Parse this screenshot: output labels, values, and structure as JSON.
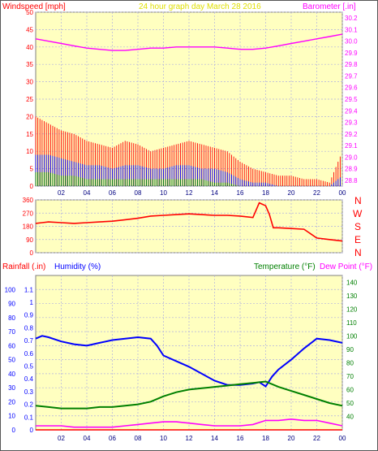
{
  "header": {
    "wind_label": "Windspeed [mph]",
    "title": "24 hour graph day   March 28 2016",
    "baro_label": "Barometer [.in]"
  },
  "bottom_header": {
    "rain_label": "Rainfall (.in)",
    "humidity_label": "Humidity (%)",
    "temp_label": "Temperature (°F)",
    "dew_label": "Dew Point (°F)"
  },
  "compass_labels": [
    "N",
    "W",
    "S",
    "E",
    "N"
  ],
  "x_ticks": [
    "02",
    "04",
    "06",
    "08",
    "10",
    "12",
    "14",
    "16",
    "18",
    "20",
    "22",
    "00"
  ],
  "colors": {
    "plot_bg": "#ffffc0",
    "wind": "#ff0000",
    "gust": "#ff0000",
    "avg_wind": "#0000ff",
    "low_wind": "#008000",
    "barometer": "#ff00ff",
    "direction": "#ff0000",
    "humidity": "#0000ff",
    "temperature": "#008000",
    "dewpoint": "#ff00ff",
    "rainfall": "#ff0000",
    "grid": "#b0b0e0",
    "tick_text": "#000080",
    "header_yellow": "#e0e000"
  },
  "chart_data": [
    {
      "type": "line",
      "title": "24 hour graph day   March 28 2016",
      "x_range": [
        0,
        24
      ],
      "grid": true,
      "axes": {
        "left": {
          "label": "Windspeed [mph]",
          "ylim": [
            0,
            50
          ],
          "ticks": [
            0,
            5,
            10,
            15,
            20,
            25,
            30,
            35,
            40,
            45,
            50
          ]
        },
        "right": {
          "label": "Barometer [.in]",
          "ylim": [
            28.75,
            30.25
          ],
          "ticks": [
            28.8,
            28.9,
            29.0,
            29.1,
            29.2,
            29.3,
            29.4,
            29.5,
            29.6,
            29.7,
            29.8,
            29.9,
            30.0,
            30.1,
            30.2
          ]
        }
      },
      "series": [
        {
          "name": "Barometer",
          "axis": "right",
          "x": [
            0,
            1,
            2,
            3,
            4,
            5,
            6,
            7,
            8,
            9,
            10,
            11,
            12,
            13,
            14,
            15,
            16,
            17,
            18,
            19,
            20,
            21,
            22,
            23,
            24
          ],
          "y": [
            30.02,
            30.0,
            29.98,
            29.96,
            29.94,
            29.93,
            29.92,
            29.92,
            29.93,
            29.94,
            29.94,
            29.95,
            29.95,
            29.95,
            29.95,
            29.94,
            29.93,
            29.93,
            29.94,
            29.96,
            29.98,
            30.0,
            30.02,
            30.04,
            30.06
          ]
        },
        {
          "name": "Wind gust",
          "axis": "left",
          "x": [
            0,
            1,
            2,
            3,
            4,
            5,
            6,
            7,
            8,
            9,
            10,
            11,
            12,
            13,
            14,
            15,
            16,
            17,
            18,
            19,
            20,
            21,
            22,
            23,
            24
          ],
          "y": [
            20,
            18,
            16,
            15,
            13,
            12,
            11,
            13,
            12,
            10,
            11,
            12,
            13,
            12,
            11,
            10,
            7,
            5,
            4,
            3,
            3,
            2,
            2,
            1,
            10
          ]
        },
        {
          "name": "Average wind",
          "axis": "left",
          "x": [
            0,
            1,
            2,
            3,
            4,
            5,
            6,
            7,
            8,
            9,
            10,
            11,
            12,
            13,
            14,
            15,
            16,
            17,
            18,
            19,
            20,
            21,
            22,
            23,
            24
          ],
          "y": [
            9,
            9,
            8,
            7,
            6,
            6,
            5,
            6,
            6,
            5,
            5,
            6,
            6,
            5,
            5,
            4,
            2,
            1,
            1,
            0,
            0,
            0,
            0,
            0,
            3
          ]
        },
        {
          "name": "Low wind",
          "axis": "left",
          "x": [
            0,
            1,
            2,
            3,
            4,
            5,
            6,
            7,
            8,
            9,
            10,
            11,
            12,
            13,
            14,
            15,
            16,
            17,
            18,
            19,
            20,
            21,
            22,
            23,
            24
          ],
          "y": [
            4,
            4,
            3,
            3,
            2,
            2,
            2,
            2,
            2,
            2,
            2,
            2,
            2,
            2,
            1,
            1,
            0,
            0,
            0,
            0,
            0,
            0,
            0,
            0,
            0
          ]
        }
      ]
    },
    {
      "type": "line",
      "x_range": [
        0,
        24
      ],
      "ylim": [
        0,
        360
      ],
      "ticks": [
        0,
        90,
        180,
        270,
        360
      ],
      "grid": true,
      "series": [
        {
          "name": "Wind direction",
          "x": [
            0,
            0.5,
            1,
            2,
            3,
            4,
            5,
            6,
            7,
            8,
            9,
            10,
            11,
            12,
            13,
            14,
            15,
            16,
            17,
            17.5,
            18,
            18.3,
            18.6,
            19,
            20,
            21,
            22,
            23,
            24
          ],
          "y": [
            200,
            205,
            210,
            205,
            200,
            205,
            210,
            215,
            225,
            235,
            250,
            255,
            260,
            265,
            260,
            255,
            255,
            250,
            240,
            340,
            320,
            260,
            170,
            170,
            165,
            160,
            100,
            90,
            80
          ]
        }
      ]
    },
    {
      "type": "line",
      "x_range": [
        0,
        24
      ],
      "grid": true,
      "axes": {
        "left_outer": {
          "label": "Rainfall (.in)",
          "ylim": [
            0,
            1.2
          ],
          "ticks": [
            0,
            0.1,
            0.2,
            0.3,
            0.4,
            0.5,
            0.6,
            0.7,
            0.8,
            0.9,
            1,
            1.1
          ]
        },
        "left_inner": {
          "label": "Humidity (%)",
          "ylim": [
            0,
            100
          ],
          "ticks": [
            0,
            10,
            20,
            30,
            40,
            50,
            60,
            70,
            80,
            90,
            100
          ]
        },
        "right": {
          "label": "Temperature (°F) Dew Point (°F)",
          "ylim": [
            30,
            150
          ],
          "ticks": [
            40,
            50,
            60,
            70,
            80,
            90,
            100,
            110,
            120,
            130,
            140
          ]
        }
      },
      "series": [
        {
          "name": "Humidity",
          "axis": "left_inner",
          "x": [
            0,
            0.5,
            1,
            2,
            3,
            4,
            5,
            6,
            7,
            8,
            9,
            9.5,
            10,
            11,
            12,
            13,
            14,
            15,
            16,
            17,
            17.5,
            18,
            18.5,
            19,
            20,
            21,
            22,
            23,
            24
          ],
          "y": [
            65,
            67,
            66,
            63,
            61,
            60,
            62,
            64,
            65,
            66,
            65,
            60,
            53,
            49,
            45,
            40,
            35,
            32,
            32,
            33,
            34,
            31,
            38,
            43,
            50,
            58,
            65,
            64,
            62
          ]
        },
        {
          "name": "Temperature",
          "axis": "right",
          "x": [
            0,
            1,
            2,
            3,
            4,
            5,
            6,
            7,
            8,
            9,
            10,
            11,
            12,
            13,
            14,
            15,
            16,
            17,
            18,
            19,
            20,
            21,
            22,
            23,
            24
          ],
          "y": [
            48,
            47,
            46,
            46,
            46,
            47,
            47,
            48,
            49,
            51,
            55,
            58,
            60,
            61,
            62,
            63,
            64,
            65,
            66,
            62,
            59,
            56,
            53,
            50,
            48
          ]
        },
        {
          "name": "Dew Point",
          "axis": "right",
          "x": [
            0,
            1,
            2,
            3,
            4,
            5,
            6,
            7,
            8,
            9,
            10,
            11,
            12,
            13,
            14,
            15,
            16,
            17,
            18,
            19,
            20,
            21,
            22,
            23,
            24
          ],
          "y": [
            33,
            33,
            33,
            32,
            32,
            32,
            32,
            33,
            34,
            35,
            36,
            36,
            35,
            34,
            33,
            33,
            33,
            34,
            37,
            37,
            38,
            37,
            37,
            35,
            33
          ]
        },
        {
          "name": "Rainfall",
          "axis": "left_outer",
          "x": [
            0,
            24
          ],
          "y": [
            0,
            0
          ]
        }
      ]
    }
  ]
}
